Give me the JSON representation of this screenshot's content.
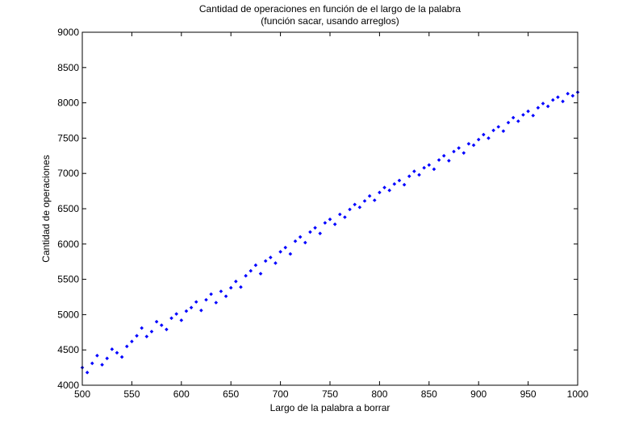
{
  "chart_data": {
    "type": "scatter",
    "title": "Cantidad de operaciones en función de el largo de la palabra",
    "subtitle": "(función sacar, usando arreglos)",
    "xlabel": "Largo de la palabra a borrar",
    "ylabel": "Cantidad de operaciones",
    "xlim": [
      500,
      1000
    ],
    "ylim": [
      4000,
      9000
    ],
    "x_ticks": [
      "500",
      "550",
      "600",
      "650",
      "700",
      "750",
      "800",
      "850",
      "900",
      "950",
      "1000"
    ],
    "y_ticks": [
      "4000",
      "4500",
      "5000",
      "5500",
      "6000",
      "6500",
      "7000",
      "7500",
      "8000",
      "8500",
      "9000"
    ],
    "grid": false,
    "legend": "none",
    "marker_color": "#0000ff",
    "series": [
      {
        "x": [
          500,
          505,
          510,
          515,
          520,
          525,
          530,
          535,
          540,
          545,
          550,
          555,
          560,
          565,
          570,
          575,
          580,
          585,
          590,
          595,
          600,
          605,
          610,
          615,
          620,
          625,
          630,
          635,
          640,
          645,
          650,
          655,
          660,
          665,
          670,
          675,
          680,
          685,
          690,
          695,
          700,
          705,
          710,
          715,
          720,
          725,
          730,
          735,
          740,
          745,
          750,
          755,
          760,
          765,
          770,
          775,
          780,
          785,
          790,
          795,
          800,
          805,
          810,
          815,
          820,
          825,
          830,
          835,
          840,
          845,
          850,
          855,
          860,
          865,
          870,
          875,
          880,
          885,
          890,
          895,
          900,
          905,
          910,
          915,
          920,
          925,
          930,
          935,
          940,
          945,
          950,
          955,
          960,
          965,
          970,
          975,
          980,
          985,
          990,
          995,
          1000
        ],
        "y": [
          4250,
          4180,
          4310,
          4420,
          4290,
          4380,
          4510,
          4460,
          4400,
          4550,
          4620,
          4700,
          4810,
          4690,
          4760,
          4900,
          4850,
          4790,
          4950,
          5010,
          4920,
          5050,
          5100,
          5180,
          5060,
          5210,
          5290,
          5170,
          5330,
          5260,
          5380,
          5470,
          5390,
          5550,
          5620,
          5700,
          5580,
          5760,
          5810,
          5730,
          5890,
          5950,
          5860,
          6040,
          6100,
          6020,
          6170,
          6230,
          6150,
          6300,
          6350,
          6280,
          6420,
          6380,
          6490,
          6560,
          6520,
          6610,
          6680,
          6620,
          6730,
          6800,
          6760,
          6850,
          6900,
          6840,
          6960,
          7030,
          6980,
          7080,
          7120,
          7060,
          7190,
          7250,
          7180,
          7310,
          7360,
          7290,
          7420,
          7400,
          7480,
          7550,
          7500,
          7610,
          7660,
          7600,
          7720,
          7790,
          7740,
          7830,
          7880,
          7820,
          7930,
          7990,
          7950,
          8040,
          8080,
          8020,
          8130,
          8100,
          8150
        ]
      }
    ]
  }
}
